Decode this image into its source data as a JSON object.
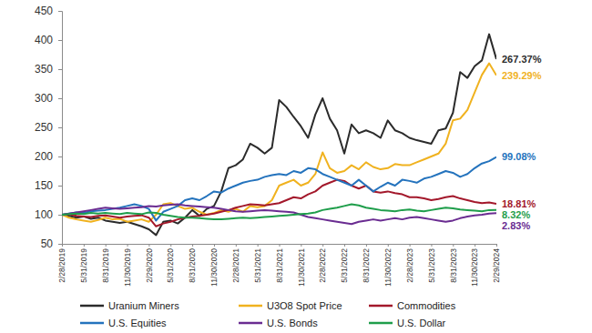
{
  "chart_data": {
    "type": "line",
    "categories": [
      "2/28/2019",
      null,
      null,
      "5/31/2019",
      null,
      null,
      "8/31/2019",
      null,
      null,
      "11/30/2019",
      null,
      null,
      "2/29/2020",
      null,
      null,
      "5/31/2020",
      null,
      null,
      "8/31/2020",
      null,
      null,
      "11/30/2020",
      null,
      null,
      "2/28/2021",
      null,
      null,
      "5/31/2021",
      null,
      null,
      "8/31/2021",
      null,
      null,
      "11/30/2021",
      null,
      null,
      "2/28/2022",
      null,
      null,
      "5/31/2022",
      null,
      null,
      "8/31/2022",
      null,
      null,
      "11/30/2022",
      null,
      null,
      "2/28/2023",
      null,
      null,
      "5/31/2023",
      null,
      null,
      "8/31/2023",
      null,
      null,
      "11/30/2023",
      null,
      null,
      "2/29/2024"
    ],
    "series": [
      {
        "name": "Uranium Miners",
        "color": "#2b2b2b",
        "label": "267.37%",
        "values": [
          100,
          98,
          95,
          97,
          93,
          95,
          90,
          88,
          86,
          88,
          84,
          80,
          75,
          65,
          88,
          90,
          85,
          95,
          108,
          98,
          110,
          115,
          140,
          180,
          185,
          195,
          222,
          215,
          205,
          215,
          297,
          285,
          268,
          252,
          232,
          272,
          300,
          265,
          245,
          205,
          255,
          240,
          245,
          240,
          232,
          262,
          245,
          240,
          232,
          228,
          225,
          222,
          245,
          248,
          275,
          345,
          335,
          355,
          365,
          410,
          367.37
        ]
      },
      {
        "name": "U3O8 Spot Price",
        "color": "#f0b21f",
        "label": "239.29%",
        "values": [
          100,
          95,
          92,
          90,
          88,
          91,
          95,
          92,
          93,
          88,
          90,
          92,
          88,
          100,
          118,
          120,
          115,
          110,
          112,
          105,
          100,
          103,
          108,
          105,
          110,
          105,
          115,
          113,
          115,
          125,
          150,
          155,
          160,
          150,
          155,
          170,
          207,
          180,
          172,
          175,
          185,
          178,
          190,
          182,
          178,
          180,
          187,
          185,
          185,
          190,
          195,
          200,
          205,
          222,
          262,
          265,
          280,
          310,
          340,
          360,
          339.29
        ]
      },
      {
        "name": "Commodities",
        "color": "#a3182b",
        "label": "18.81%",
        "values": [
          100,
          101,
          98,
          97,
          96,
          98,
          99,
          97,
          95,
          97,
          98,
          99,
          95,
          80,
          85,
          88,
          92,
          95,
          97,
          98,
          100,
          102,
          105,
          108,
          112,
          115,
          118,
          117,
          116,
          118,
          120,
          125,
          130,
          128,
          135,
          140,
          150,
          155,
          160,
          158,
          150,
          145,
          150,
          140,
          138,
          140,
          137,
          135,
          130,
          130,
          128,
          125,
          127,
          130,
          132,
          128,
          125,
          122,
          120,
          121,
          118.81
        ]
      },
      {
        "name": "U.S. Equities",
        "color": "#2473bd",
        "label": "99.08%",
        "values": [
          100,
          102,
          104,
          103,
          106,
          107,
          108,
          110,
          112,
          115,
          118,
          115,
          110,
          90,
          105,
          110,
          115,
          125,
          128,
          125,
          132,
          140,
          138,
          145,
          150,
          155,
          158,
          160,
          165,
          168,
          170,
          168,
          175,
          172,
          180,
          178,
          170,
          165,
          160,
          155,
          150,
          160,
          150,
          140,
          148,
          155,
          150,
          160,
          158,
          155,
          162,
          165,
          170,
          175,
          172,
          165,
          170,
          180,
          188,
          192,
          199.08
        ]
      },
      {
        "name": "U.S. Bonds",
        "color": "#6a2c91",
        "label": "2.83%",
        "values": [
          100,
          102,
          104,
          106,
          108,
          110,
          112,
          111,
          110,
          111,
          112,
          113,
          115,
          114,
          116,
          117,
          118,
          116,
          115,
          114,
          113,
          112,
          110,
          108,
          106,
          105,
          106,
          107,
          108,
          107,
          106,
          105,
          104,
          100,
          96,
          94,
          92,
          90,
          88,
          86,
          84,
          88,
          90,
          92,
          90,
          92,
          94,
          92,
          95,
          96,
          94,
          92,
          90,
          88,
          90,
          94,
          97,
          99,
          100,
          102,
          102.83
        ]
      },
      {
        "name": "U.S. Dollar",
        "color": "#1f9e4b",
        "label": "8.32%",
        "values": [
          100,
          101,
          102,
          101,
          103,
          102,
          103,
          102,
          101,
          103,
          102,
          101,
          104,
          103,
          100,
          98,
          96,
          95,
          95,
          94,
          93,
          92,
          92,
          93,
          94,
          95,
          94,
          95,
          96,
          97,
          98,
          99,
          100,
          101,
          102,
          104,
          108,
          110,
          112,
          115,
          118,
          116,
          112,
          110,
          108,
          107,
          106,
          108,
          109,
          107,
          106,
          108,
          110,
          112,
          111,
          109,
          108,
          107,
          106,
          108,
          108.32
        ]
      }
    ],
    "ylim": [
      50,
      450
    ],
    "yticks": [
      50,
      100,
      150,
      200,
      250,
      300,
      350,
      400,
      450
    ],
    "grid": false,
    "legend": "bottom"
  }
}
